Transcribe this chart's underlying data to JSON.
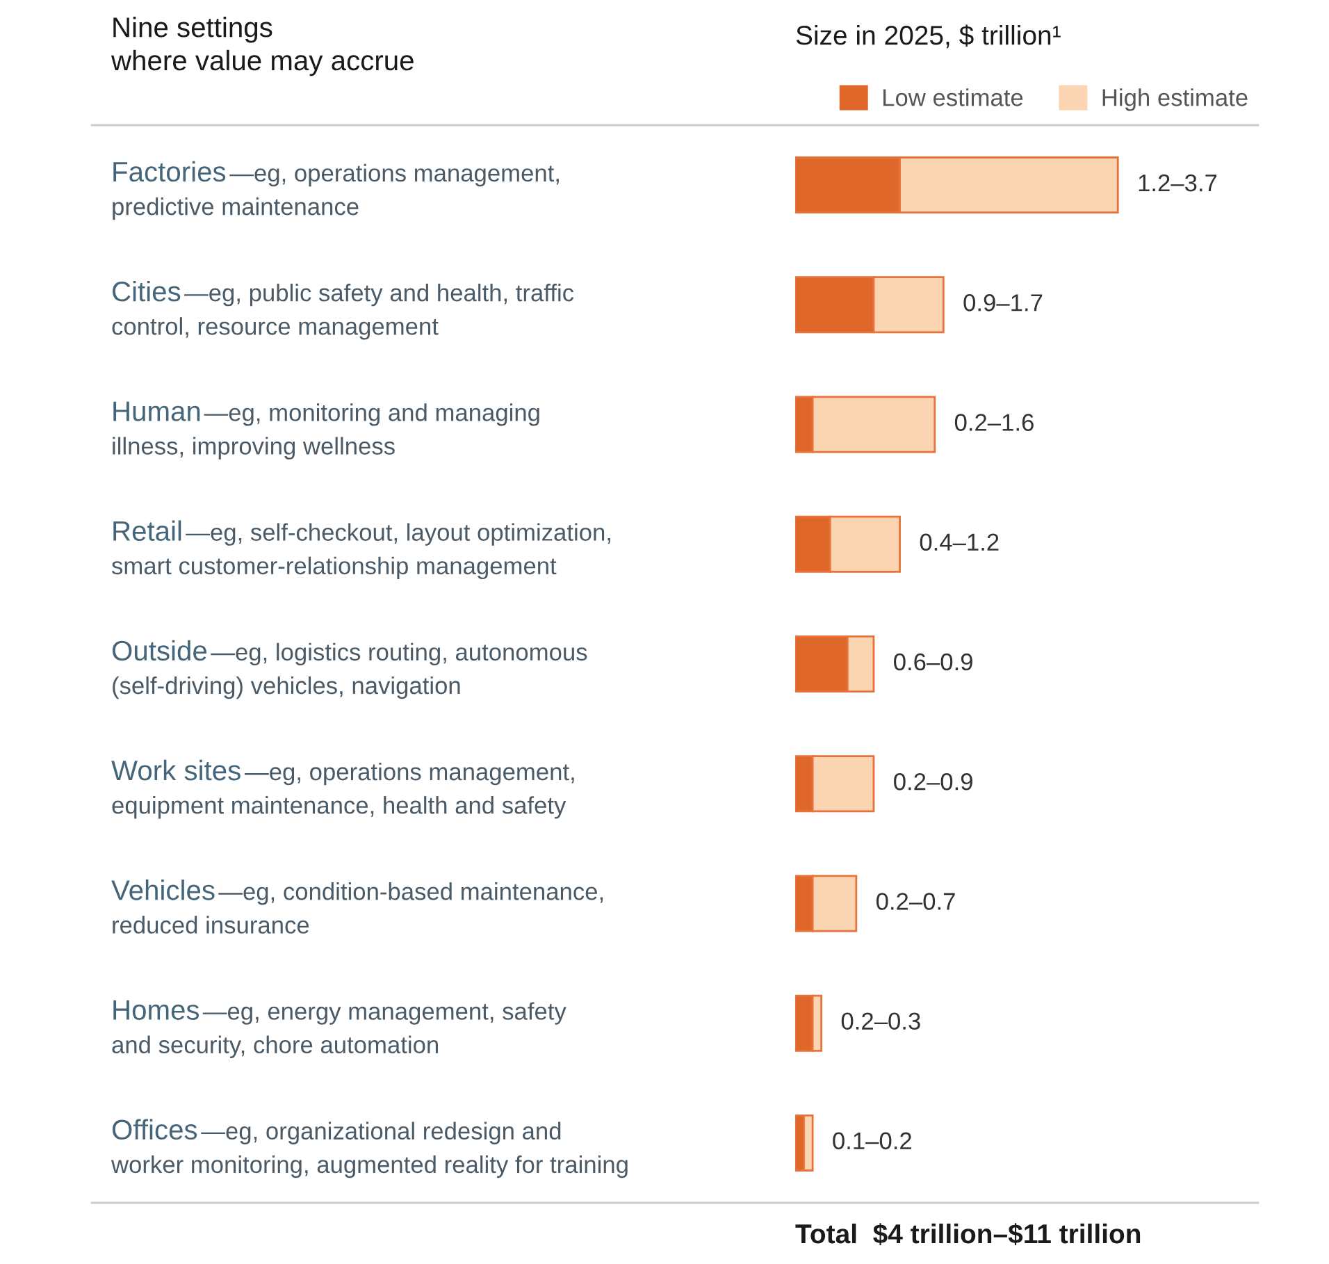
{
  "chart_data": {
    "type": "bar",
    "orientation": "horizontal",
    "stacked": true,
    "title": "Nine settings\nwhere value may accrue",
    "xlabel": "Size in 2025, $ trillion¹",
    "categories": [
      "Factories—eg, operations management,\npredictive maintenance",
      "Cities—eg, public safety and health, traffic\ncontrol, resource management",
      "Human—eg, monitoring and managing\nillness, improving wellness",
      "Retail—eg, self-checkout, layout optimization,\nsmart customer-relationship management",
      "Outside—eg, logistics routing, autonomous\n(self-driving) vehicles, navigation",
      "Work sites—eg, operations management,\nequipment maintenance, health and safety",
      "Vehicles—eg, condition-based maintenance,\nreduced insurance",
      "Homes—eg, energy management, safety\nand security, chore automation",
      "Offices—eg, organizational redesign and\nworker monitoring, augmented reality for training"
    ],
    "series": [
      {
        "name": "Low estimate",
        "color": "#e0672a",
        "values": [
          1.2,
          0.9,
          0.2,
          0.4,
          0.6,
          0.2,
          0.2,
          0.2,
          0.1
        ]
      },
      {
        "name": "High estimate",
        "color": "#fbd5b2",
        "values": [
          2.5,
          0.8,
          1.4,
          0.8,
          0.3,
          0.7,
          0.5,
          0.1,
          0.1
        ],
        "value_labels": [
          "1.2–3.7",
          "0.9–1.7",
          "0.2–1.6",
          "0.4–1.2",
          "0.6–0.9",
          "0.2–0.9",
          "0.2–0.7",
          "0.2–0.3",
          "0.1–0.2"
        ]
      }
    ],
    "xlim": [
      0,
      5.26
    ],
    "tick_labels": "y",
    "legend": "top right",
    "annotations": [
      "Total  $4 trillion–$11 trillion"
    ]
  }
}
